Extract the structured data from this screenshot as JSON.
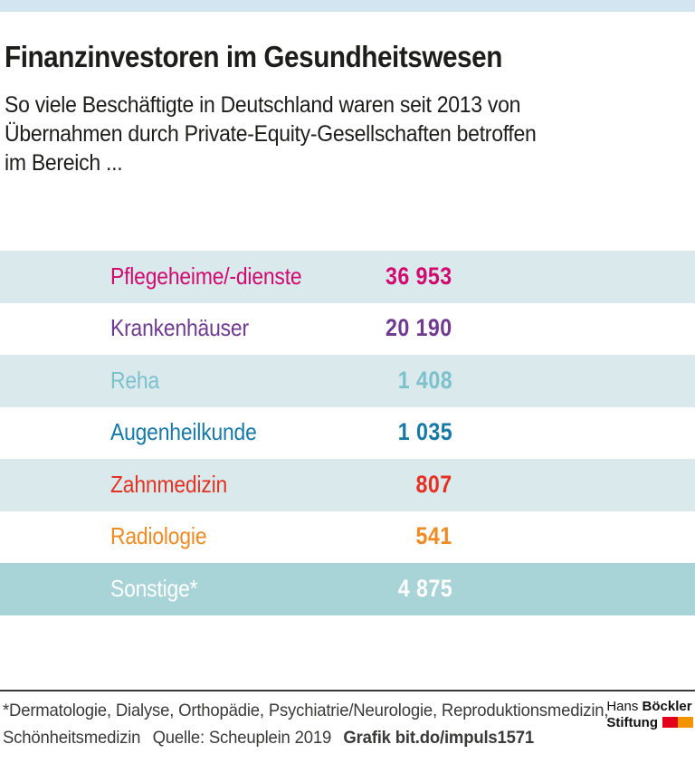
{
  "header": {
    "title": "Finanzinvestoren im Gesundheitswesen",
    "subtitle_lines": [
      "So viele Beschäftigte in Deutschland waren seit 2013 von",
      "Übernahmen durch Private-Equity-Gesellschaften betroffen",
      "im Bereich ..."
    ]
  },
  "chart_data": {
    "type": "table",
    "title": "Finanzinvestoren im Gesundheitswesen",
    "subtitle": "So viele Beschäftigte in Deutschland waren seit 2013 von Übernahmen durch Private-Equity-Gesellschaften betroffen im Bereich ...",
    "categories": [
      "Pflegeheime/-dienste",
      "Krankenhäuser",
      "Reha",
      "Augenheilkunde",
      "Zahnmedizin",
      "Radiologie",
      "Sonstige*"
    ],
    "values": [
      36953,
      20190,
      1408,
      1035,
      807,
      541,
      4875
    ],
    "value_labels": [
      "36 953",
      "20 190",
      "1 408",
      "1 035",
      "807",
      "541",
      "4 875"
    ],
    "series_colors": [
      "#d10a70",
      "#703a91",
      "#7dc1cd",
      "#1679a7",
      "#e53122",
      "#ef8b22",
      "#ffffff"
    ],
    "row_backgrounds": [
      "#d9e9ec",
      "#ffffff",
      "#d9e9ec",
      "#ffffff",
      "#d9e9ec",
      "#ffffff",
      "#a8d4d8"
    ],
    "footnote": "*Dermatologie, Dialyse, Orthopädie, Psychiatrie/Neurologie, Reproduktionsmedizin, Schönheitsmedizin",
    "source": "Quelle: Scheuplein 2019"
  },
  "table": {
    "rows": [
      {
        "label": "Pflegeheime/-dienste",
        "value_label": "36 953",
        "color": "#d10a70",
        "bg": "#d9e9ec"
      },
      {
        "label": "Krankenhäuser",
        "value_label": "20 190",
        "color": "#703a91",
        "bg": "#ffffff"
      },
      {
        "label": "Reha",
        "value_label": "1 408",
        "color": "#7dc1cd",
        "bg": "#d9e9ec"
      },
      {
        "label": "Augenheilkunde",
        "value_label": "1 035",
        "color": "#1679a7",
        "bg": "#ffffff"
      },
      {
        "label": "Zahnmedizin",
        "value_label": "807",
        "color": "#e53122",
        "bg": "#d9e9ec"
      },
      {
        "label": "Radiologie",
        "value_label": "541",
        "color": "#ef8b22",
        "bg": "#ffffff"
      },
      {
        "label": "Sonstige*",
        "value_label": "4 875",
        "color": "#ffffff",
        "bg": "#a8d4d8"
      }
    ]
  },
  "footer": {
    "footnote_line1": "*Dermatologie, Dialyse, Orthopädie, Psychiatrie/Neurologie, Reproduktionsmedizin,",
    "footnote_line2": "Schönheitsmedizin",
    "source": "Quelle: Scheuplein 2019",
    "grafik": "Grafik bit.do/impuls1571"
  },
  "logo": {
    "line1_regular": "Hans ",
    "line1_bold": "Böckler",
    "line2_bold": "Stiftung"
  },
  "colors": {
    "top_bar": "#d2e5f0",
    "rule": "#3a3a39",
    "footnote_text": "#3a3a39",
    "logo_flag_red": "#e2001a",
    "logo_flag_orange": "#f29400"
  }
}
